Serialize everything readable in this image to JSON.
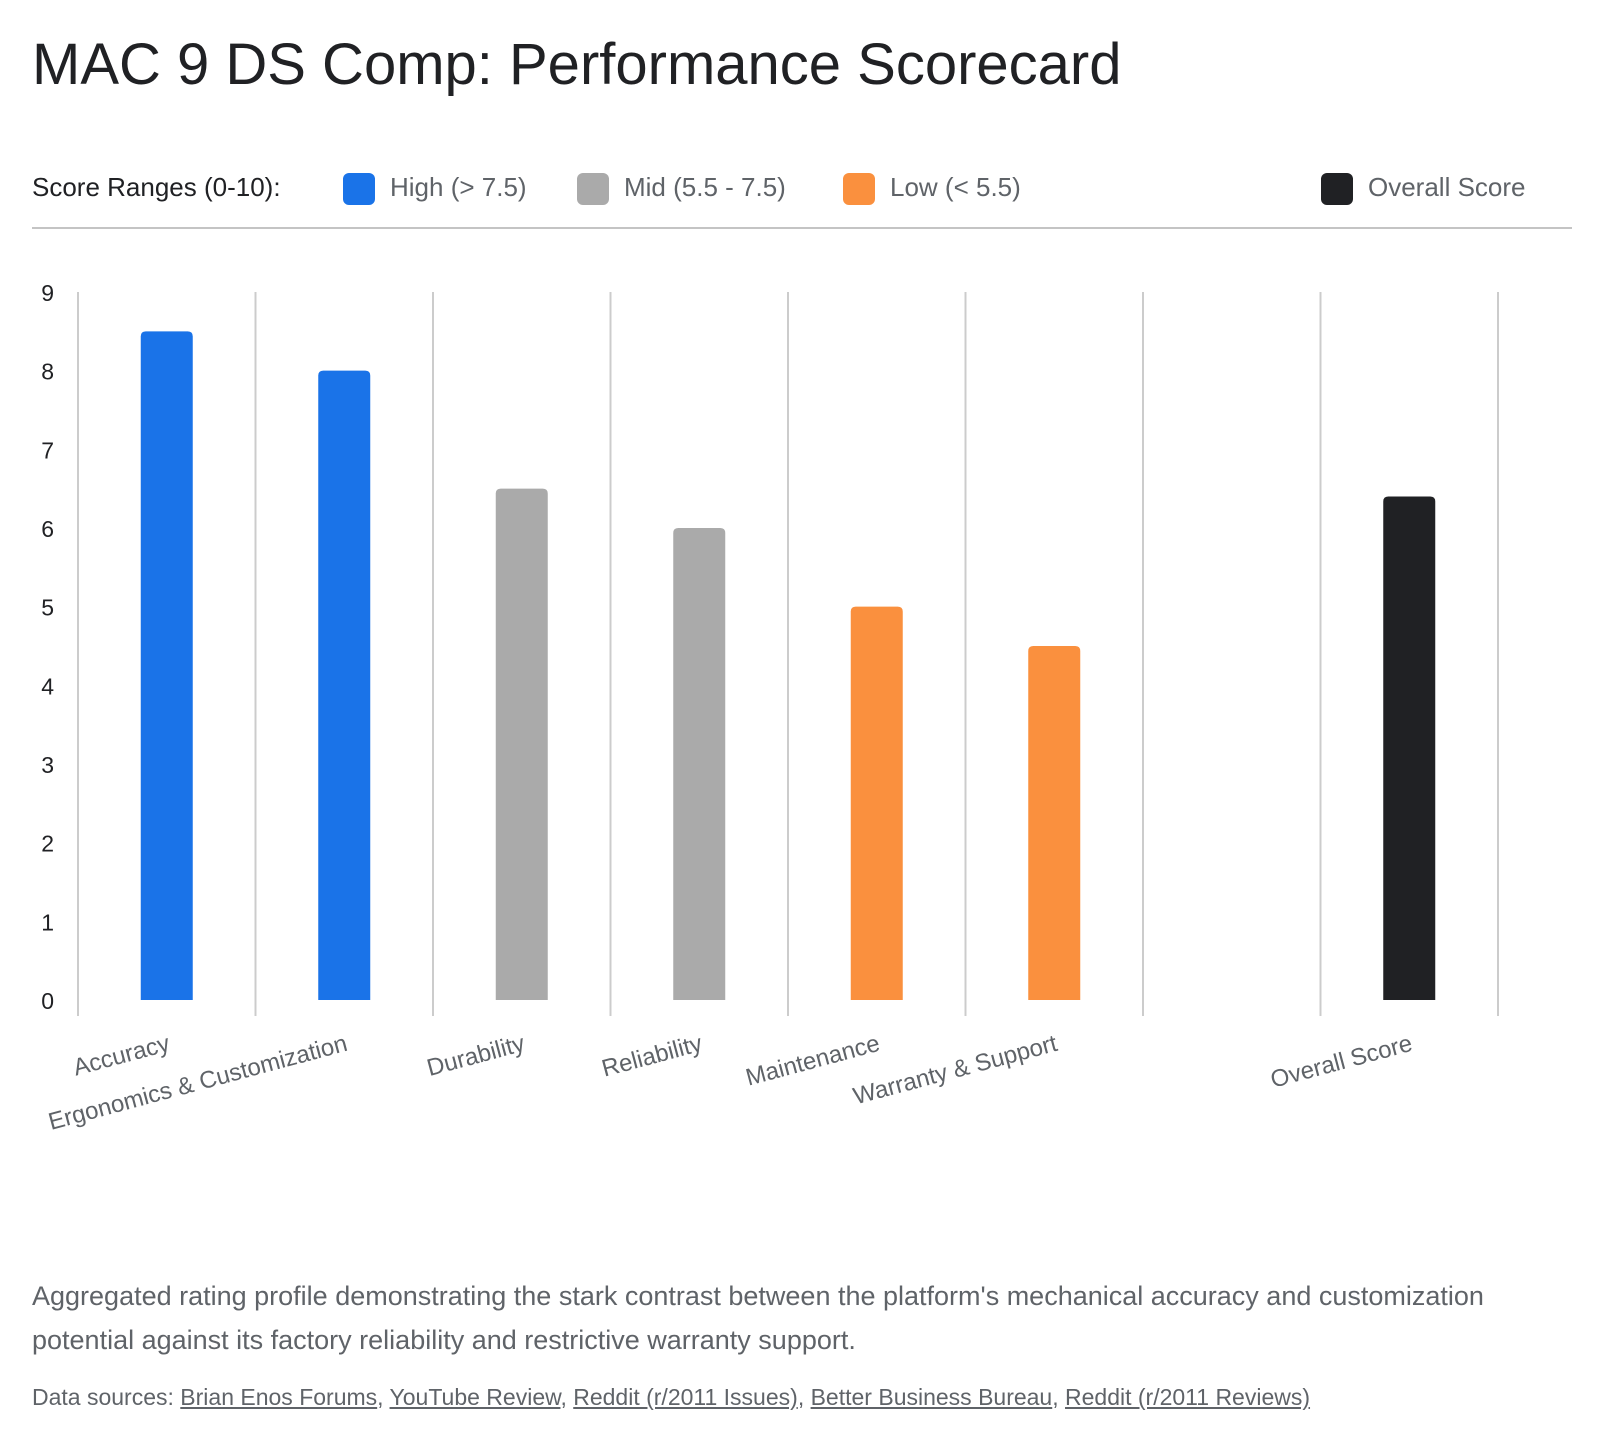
{
  "title": "MAC 9 DS Comp: Performance Scorecard",
  "legend": {
    "label": "Score Ranges (0-10):",
    "items": [
      {
        "label": "High (> 7.5)",
        "color": "#1a73e8"
      },
      {
        "label": "Mid (5.5 - 7.5)",
        "color": "#aaaaaa"
      },
      {
        "label": "Low (< 5.5)",
        "color": "#fa903e"
      },
      {
        "label": "Overall Score",
        "color": "#202124"
      }
    ]
  },
  "chart_data": {
    "type": "bar",
    "categories": [
      "Accuracy",
      "Ergonomics & Customization",
      "Durability",
      "Reliability",
      "Maintenance",
      "Warranty & Support",
      "",
      "Overall Score"
    ],
    "values": [
      8.5,
      8.0,
      6.5,
      6.0,
      5.0,
      4.5,
      null,
      6.4
    ],
    "bar_colors": [
      "#1a73e8",
      "#1a73e8",
      "#aaaaaa",
      "#aaaaaa",
      "#fa903e",
      "#fa903e",
      null,
      "#202124"
    ],
    "ylim": [
      0,
      9
    ],
    "yticks": [
      0,
      1,
      2,
      3,
      4,
      5,
      6,
      7,
      8,
      9
    ],
    "grid": "vertical",
    "x_tick_rotation": -15
  },
  "caption": "Aggregated rating profile demonstrating the stark contrast between the platform's mechanical accuracy and customization potential against its factory reliability and restrictive warranty support.",
  "sources": {
    "prefix": "Data sources: ",
    "links": [
      "Brian Enos Forums",
      "YouTube Review",
      "Reddit (r/2011 Issues)",
      "Better Business Bureau",
      "Reddit (r/2011 Reviews)"
    ]
  }
}
